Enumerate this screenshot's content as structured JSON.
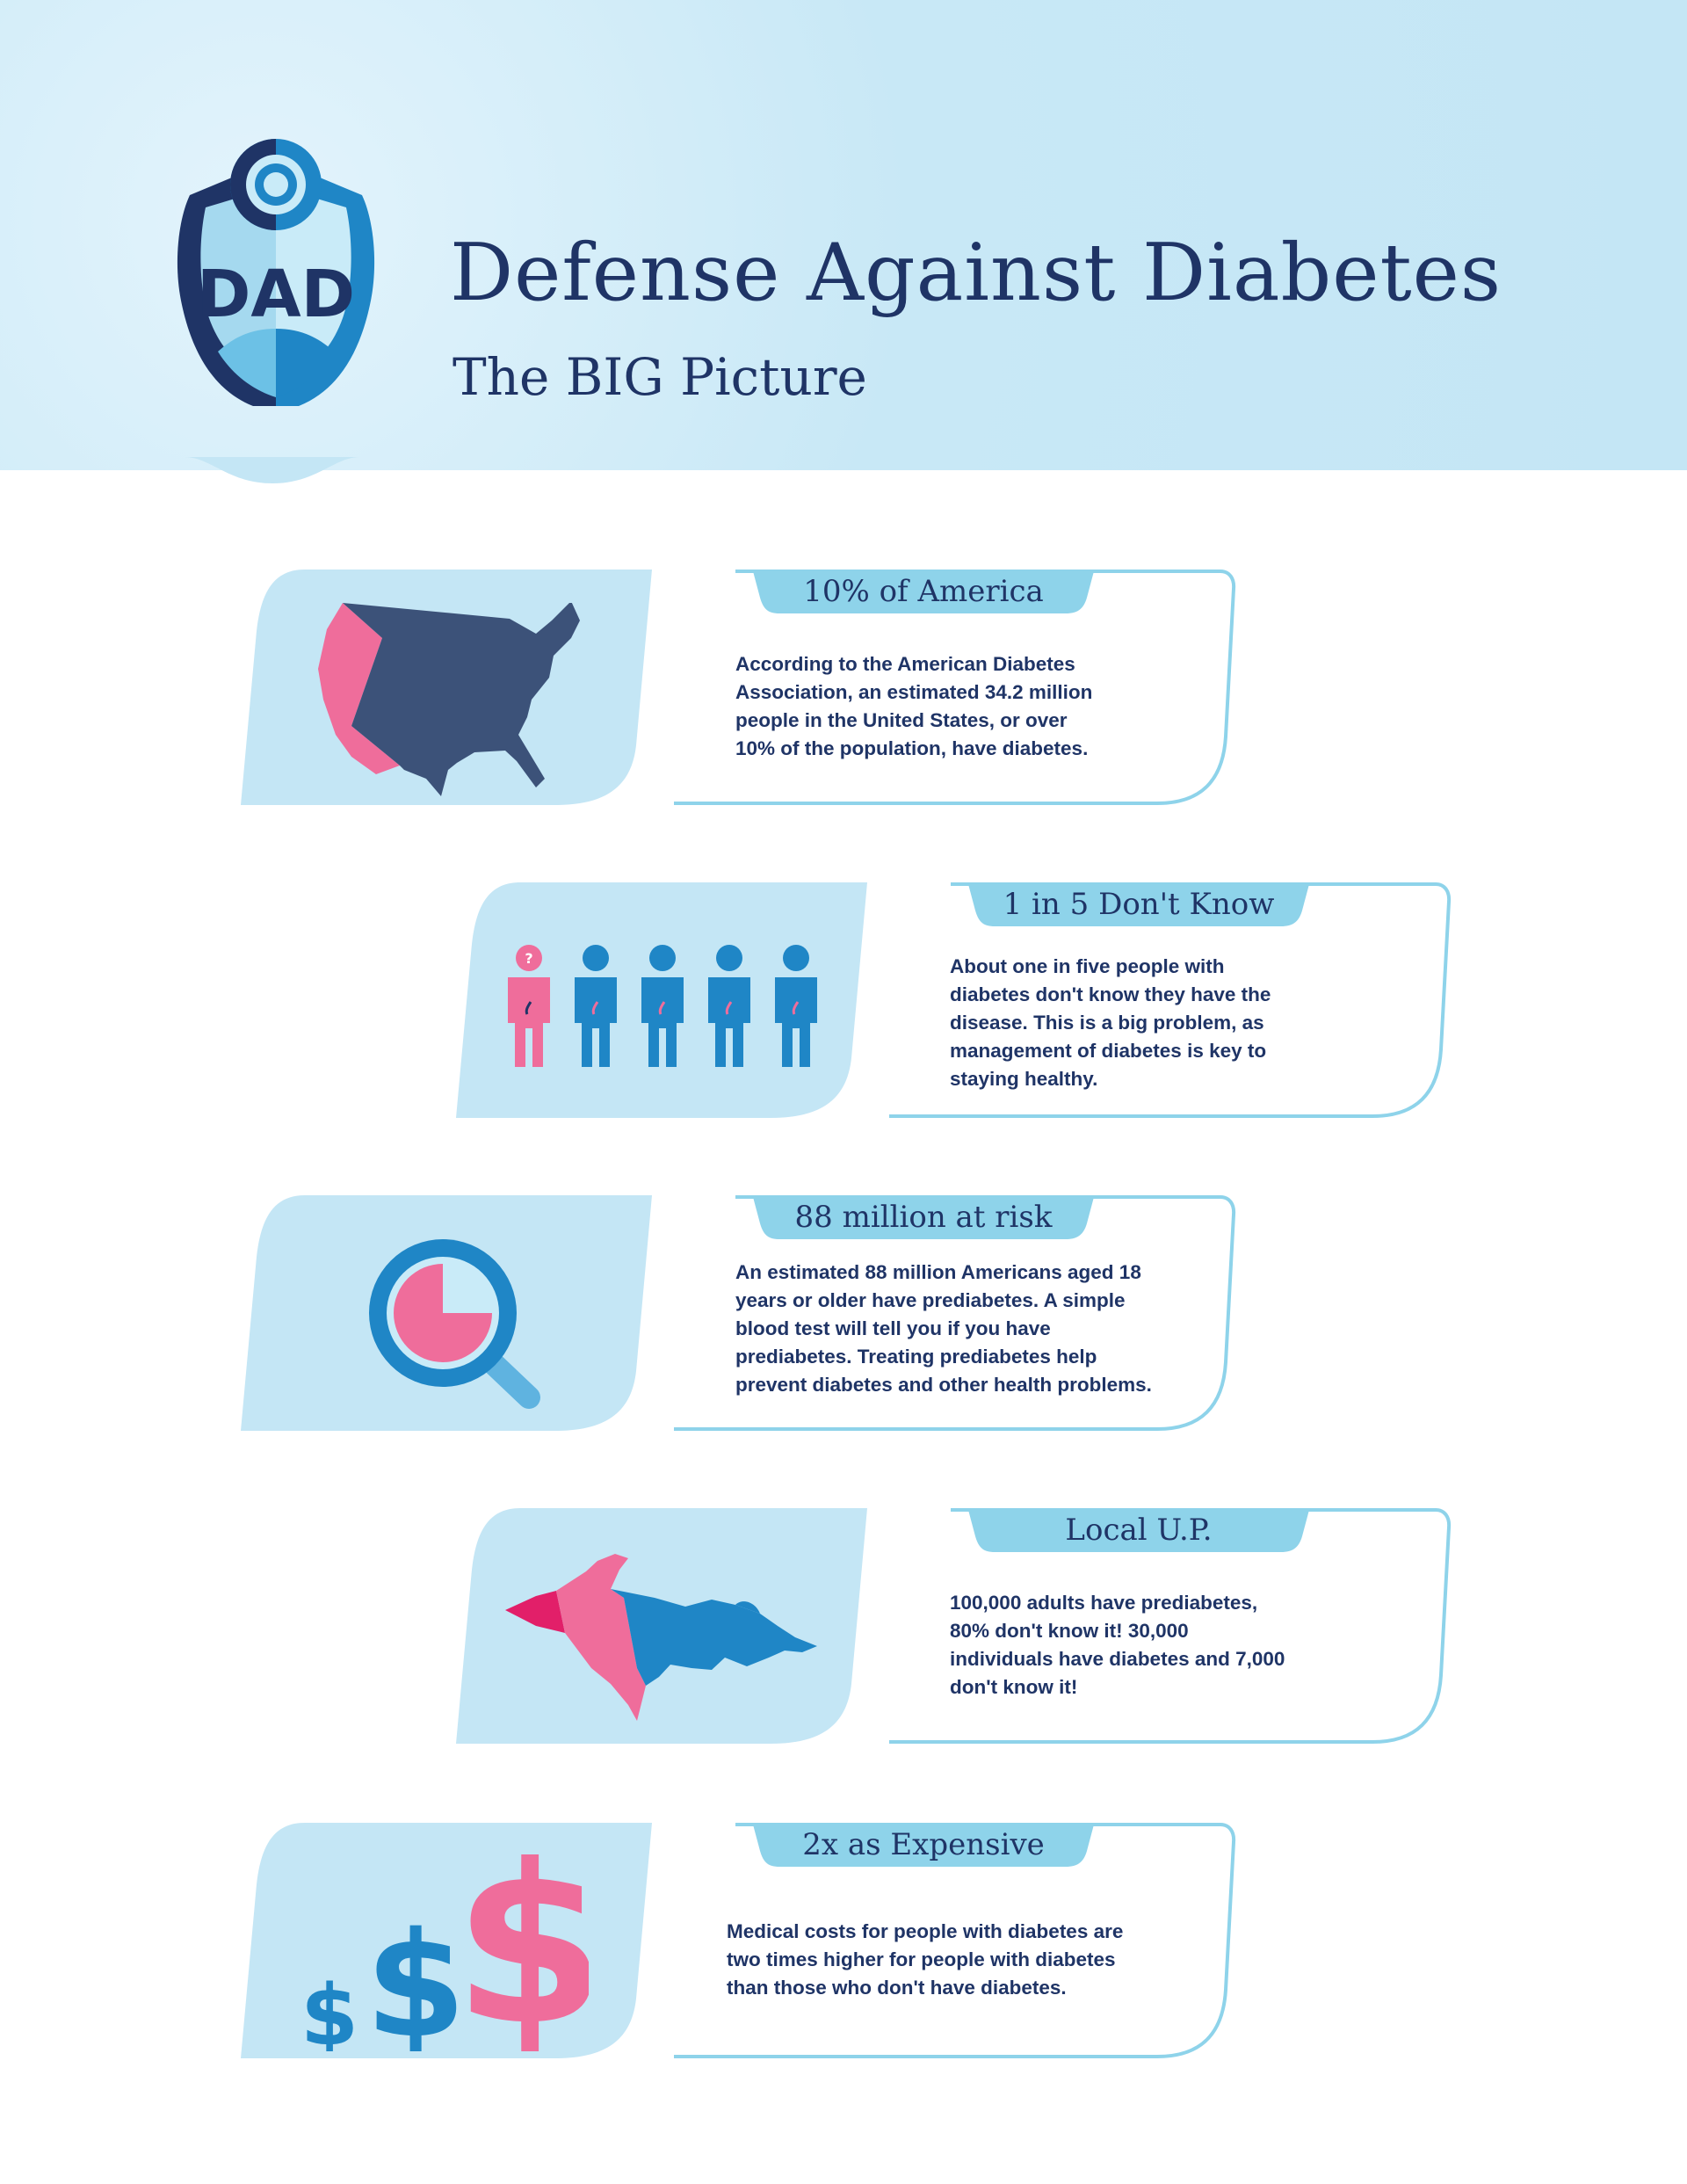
{
  "header": {
    "logo_text": "DAD",
    "title": "Defense Against Diabetes",
    "subtitle": "The BIG Picture"
  },
  "colors": {
    "light_blue": "#c4e6f5",
    "tab_blue": "#8ed3ea",
    "navy": "#1f3466",
    "mid_blue": "#1f86c6",
    "pink": "#ef6d9b",
    "map_navy": "#3c5279"
  },
  "cards": [
    {
      "icon": "usa-map-icon",
      "title": "10% of America",
      "lines": [
        "According to the American Diabetes",
        "Association, an estimated 34.2 million",
        "people in the United States, or over",
        "10% of the population, have diabetes."
      ]
    },
    {
      "icon": "people-icon",
      "title": "1 in 5 Don't Know",
      "lines": [
        "About one in five people with",
        "diabetes don't know they have the",
        "disease. This is a big problem, as",
        "management of diabetes is key to",
        "staying healthy."
      ]
    },
    {
      "icon": "magnifier-pie-icon",
      "title": "88 million at risk",
      "lines": [
        "An estimated 88 million Americans aged 18",
        "years or older have prediabetes. A simple",
        "blood test will tell you if you have",
        "prediabetes. Treating prediabetes help",
        "prevent diabetes and other health problems."
      ]
    },
    {
      "icon": "upper-peninsula-map-icon",
      "title": "Local U.P.",
      "lines": [
        "100,000 adults have prediabetes,",
        "80% don't know it! 30,000",
        "individuals have diabetes and 7,000",
        "don't know it!"
      ]
    },
    {
      "icon": "dollar-signs-icon",
      "title": "2x as Expensive",
      "lines": [
        "Medical costs for people with diabetes are",
        "two times higher for people with diabetes",
        "than those who don't have diabetes."
      ]
    }
  ]
}
